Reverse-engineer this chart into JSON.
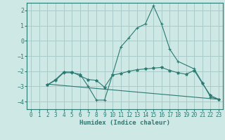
{
  "background_color": "#cde8e5",
  "grid_color": "#a8ccca",
  "line_color": "#2a7a72",
  "xlabel": "Humidex (Indice chaleur)",
  "xlim": [
    -0.5,
    23.5
  ],
  "ylim": [
    -4.5,
    2.5
  ],
  "yticks": [
    -4,
    -3,
    -2,
    -1,
    0,
    1,
    2
  ],
  "xticks": [
    0,
    1,
    2,
    3,
    4,
    5,
    6,
    7,
    8,
    9,
    10,
    11,
    12,
    13,
    14,
    15,
    16,
    17,
    18,
    19,
    20,
    21,
    22,
    23
  ],
  "series": [
    {
      "x": [
        2,
        3,
        4,
        5,
        6,
        7,
        8,
        9,
        10,
        11,
        12,
        13,
        14,
        15,
        16,
        17,
        18,
        20,
        21,
        22,
        23
      ],
      "y": [
        -2.9,
        -2.6,
        -2.1,
        -2.1,
        -2.2,
        -3.0,
        -3.9,
        -3.9,
        -2.2,
        -0.4,
        0.2,
        0.85,
        1.1,
        2.3,
        1.1,
        -0.55,
        -1.35,
        -1.85,
        -2.75,
        -3.7,
        -3.85
      ],
      "marker": "+",
      "markersize": 3.5
    },
    {
      "x": [
        2,
        3,
        4,
        5,
        6,
        7,
        8,
        9,
        10,
        11,
        12,
        13,
        14,
        15,
        16,
        17,
        18,
        19,
        20,
        21,
        22,
        23
      ],
      "y": [
        -2.9,
        -2.55,
        -2.05,
        -2.05,
        -2.3,
        -2.55,
        -2.6,
        -3.05,
        -2.25,
        -2.15,
        -2.0,
        -1.9,
        -1.85,
        -1.8,
        -1.75,
        -1.95,
        -2.1,
        -2.2,
        -1.95,
        -2.8,
        -3.6,
        -3.85
      ],
      "marker": "*",
      "markersize": 3.0
    },
    {
      "x": [
        2,
        23
      ],
      "y": [
        -2.85,
        -3.85
      ],
      "marker": null,
      "markersize": 0
    }
  ]
}
